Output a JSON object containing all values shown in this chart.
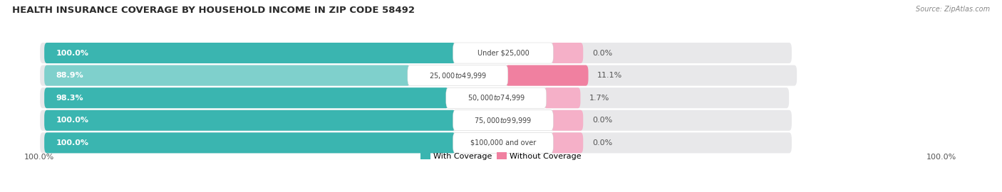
{
  "title": "HEALTH INSURANCE COVERAGE BY HOUSEHOLD INCOME IN ZIP CODE 58492",
  "source": "Source: ZipAtlas.com",
  "categories": [
    "Under $25,000",
    "$25,000 to $49,999",
    "$50,000 to $74,999",
    "$75,000 to $99,999",
    "$100,000 and over"
  ],
  "with_coverage": [
    100.0,
    88.9,
    98.3,
    100.0,
    100.0
  ],
  "without_coverage": [
    0.0,
    11.1,
    1.7,
    0.0,
    0.0
  ],
  "color_with": "#3ab5b0",
  "color_with_light": "#7fd0cc",
  "color_without": "#f080a0",
  "color_without_light": "#f5b0c8",
  "color_bg_bar": "#e8e8ea",
  "background_color": "#ffffff",
  "title_fontsize": 9.5,
  "legend_fontsize": 8,
  "bottom_left_label": "100.0%",
  "bottom_right_label": "100.0%"
}
